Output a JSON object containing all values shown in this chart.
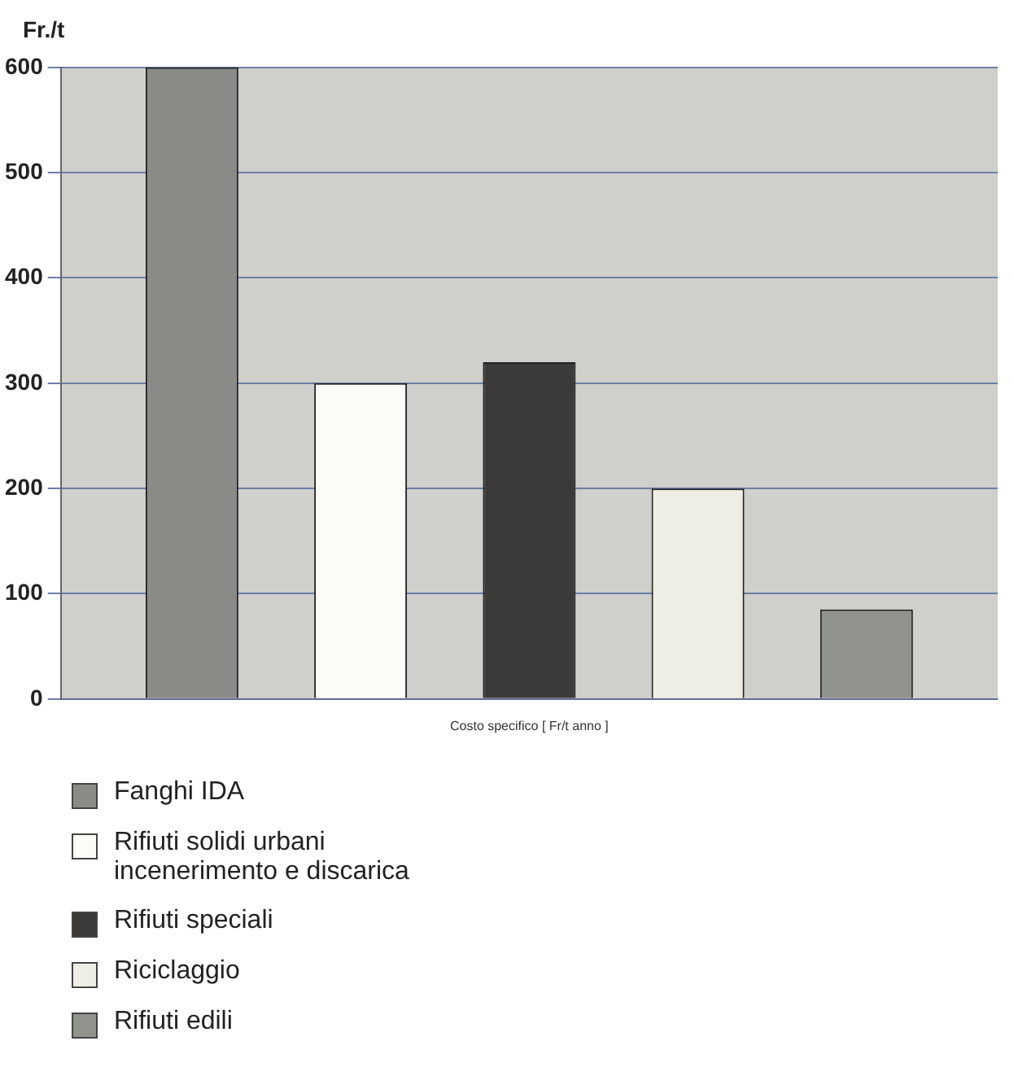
{
  "chart_data": {
    "type": "bar",
    "ylabel": "Fr./t",
    "xlabel": "Costo specifico [ Fr/t anno ]",
    "categories": [
      null
    ],
    "series": [
      {
        "name": "Fanghi IDA",
        "color": "#8a8a86",
        "values": [
          600
        ]
      },
      {
        "name": "Rifiuti solidi urbani incenerimento e discarica",
        "color": "#fbfbf8",
        "values": [
          300
        ]
      },
      {
        "name": "Rifiuti speciali",
        "color": "#3c3a38",
        "values": [
          320
        ]
      },
      {
        "name": "Riciclaggio",
        "color": "#eeeee4",
        "values": [
          200
        ]
      },
      {
        "name": "Rifiuti edili",
        "color": "#90928c",
        "values": [
          85
        ]
      }
    ],
    "ylim": [
      0,
      600
    ],
    "yticks": [
      0,
      100,
      200,
      300,
      400,
      500,
      600
    ],
    "grid": "y",
    "legend": "bottom"
  }
}
